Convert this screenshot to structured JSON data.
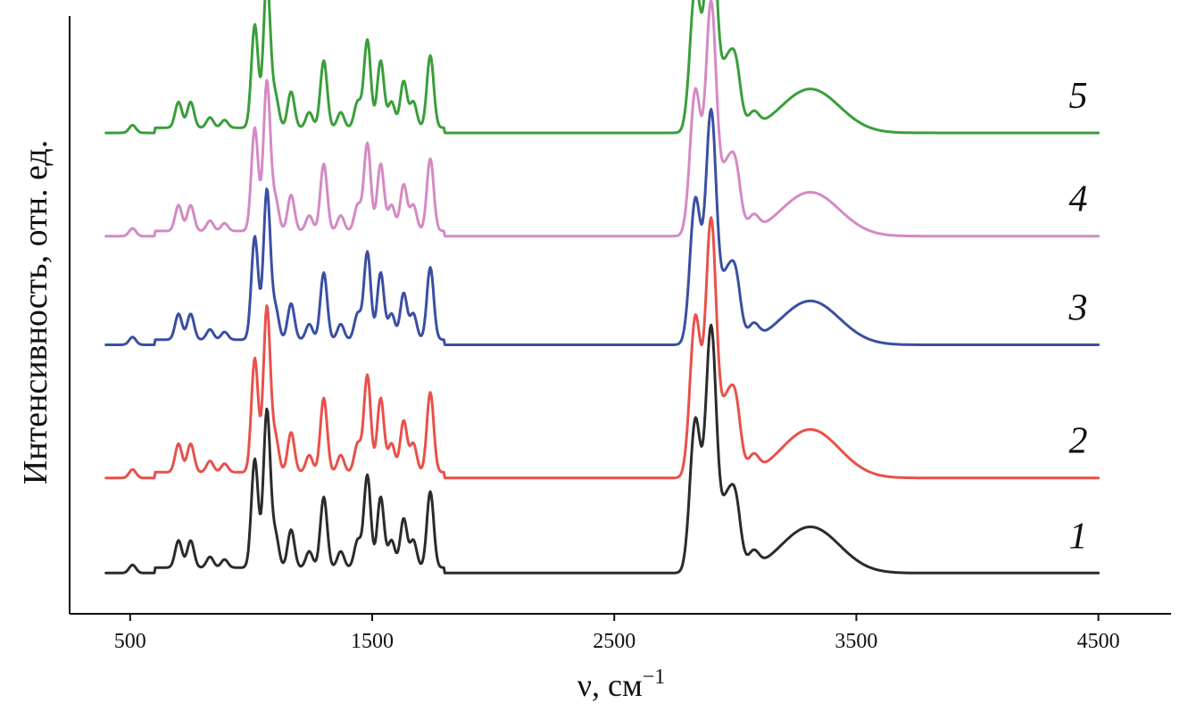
{
  "chart_data": {
    "type": "line",
    "title": "",
    "xlabel": "ν, см",
    "xlabel_superscript": "−1",
    "ylabel": "Интенсивность, отн. ед.",
    "xlim": [
      250,
      4800
    ],
    "xticks": [
      500,
      1500,
      2500,
      3500,
      4500
    ],
    "xtick_labels": [
      "500",
      "1500",
      "2500",
      "3500",
      "4500"
    ],
    "y_ticks_shown": false,
    "grid": false,
    "legend": "inline labels at right end of each trace",
    "peaks": [
      {
        "center": 510,
        "rel_height": 0.03
      },
      {
        "center": 700,
        "rel_height": 0.1
      },
      {
        "center": 750,
        "rel_height": 0.1
      },
      {
        "center": 830,
        "rel_height": 0.04
      },
      {
        "center": 890,
        "rel_height": 0.03
      },
      {
        "center": 1015,
        "rel_height": 0.4
      },
      {
        "center": 1065,
        "rel_height": 0.58
      },
      {
        "center": 1100,
        "rel_height": 0.12
      },
      {
        "center": 1165,
        "rel_height": 0.14
      },
      {
        "center": 1240,
        "rel_height": 0.06
      },
      {
        "center": 1300,
        "rel_height": 0.26
      },
      {
        "center": 1370,
        "rel_height": 0.06
      },
      {
        "center": 1440,
        "rel_height": 0.1
      },
      {
        "center": 1480,
        "rel_height": 0.34
      },
      {
        "center": 1535,
        "rel_height": 0.26
      },
      {
        "center": 1580,
        "rel_height": 0.1
      },
      {
        "center": 1630,
        "rel_height": 0.18
      },
      {
        "center": 1670,
        "rel_height": 0.1
      },
      {
        "center": 1740,
        "rel_height": 0.28
      },
      {
        "center": 2835,
        "rel_height": 0.56
      },
      {
        "center": 2900,
        "rel_height": 0.9
      },
      {
        "center": 2960,
        "rel_height": 0.22
      },
      {
        "center": 3000,
        "rel_height": 0.26
      },
      {
        "center": 3075,
        "rel_height": 0.06
      },
      {
        "center": 3310,
        "rel_height": 0.17
      }
    ],
    "series": [
      {
        "name": "1",
        "color": "#2b2b2b",
        "baseline": 0.0,
        "scale": 1.0
      },
      {
        "name": "2",
        "color": "#e8514a",
        "baseline": 0.35,
        "scale": 1.05
      },
      {
        "name": "3",
        "color": "#3a4fa3",
        "baseline": 0.84,
        "scale": 0.95
      },
      {
        "name": "4",
        "color": "#d48ac4",
        "baseline": 1.24,
        "scale": 0.95
      },
      {
        "name": "5",
        "color": "#3a9e3a",
        "baseline": 1.62,
        "scale": 0.95
      }
    ],
    "ylim": [
      -0.15,
      2.05
    ]
  }
}
